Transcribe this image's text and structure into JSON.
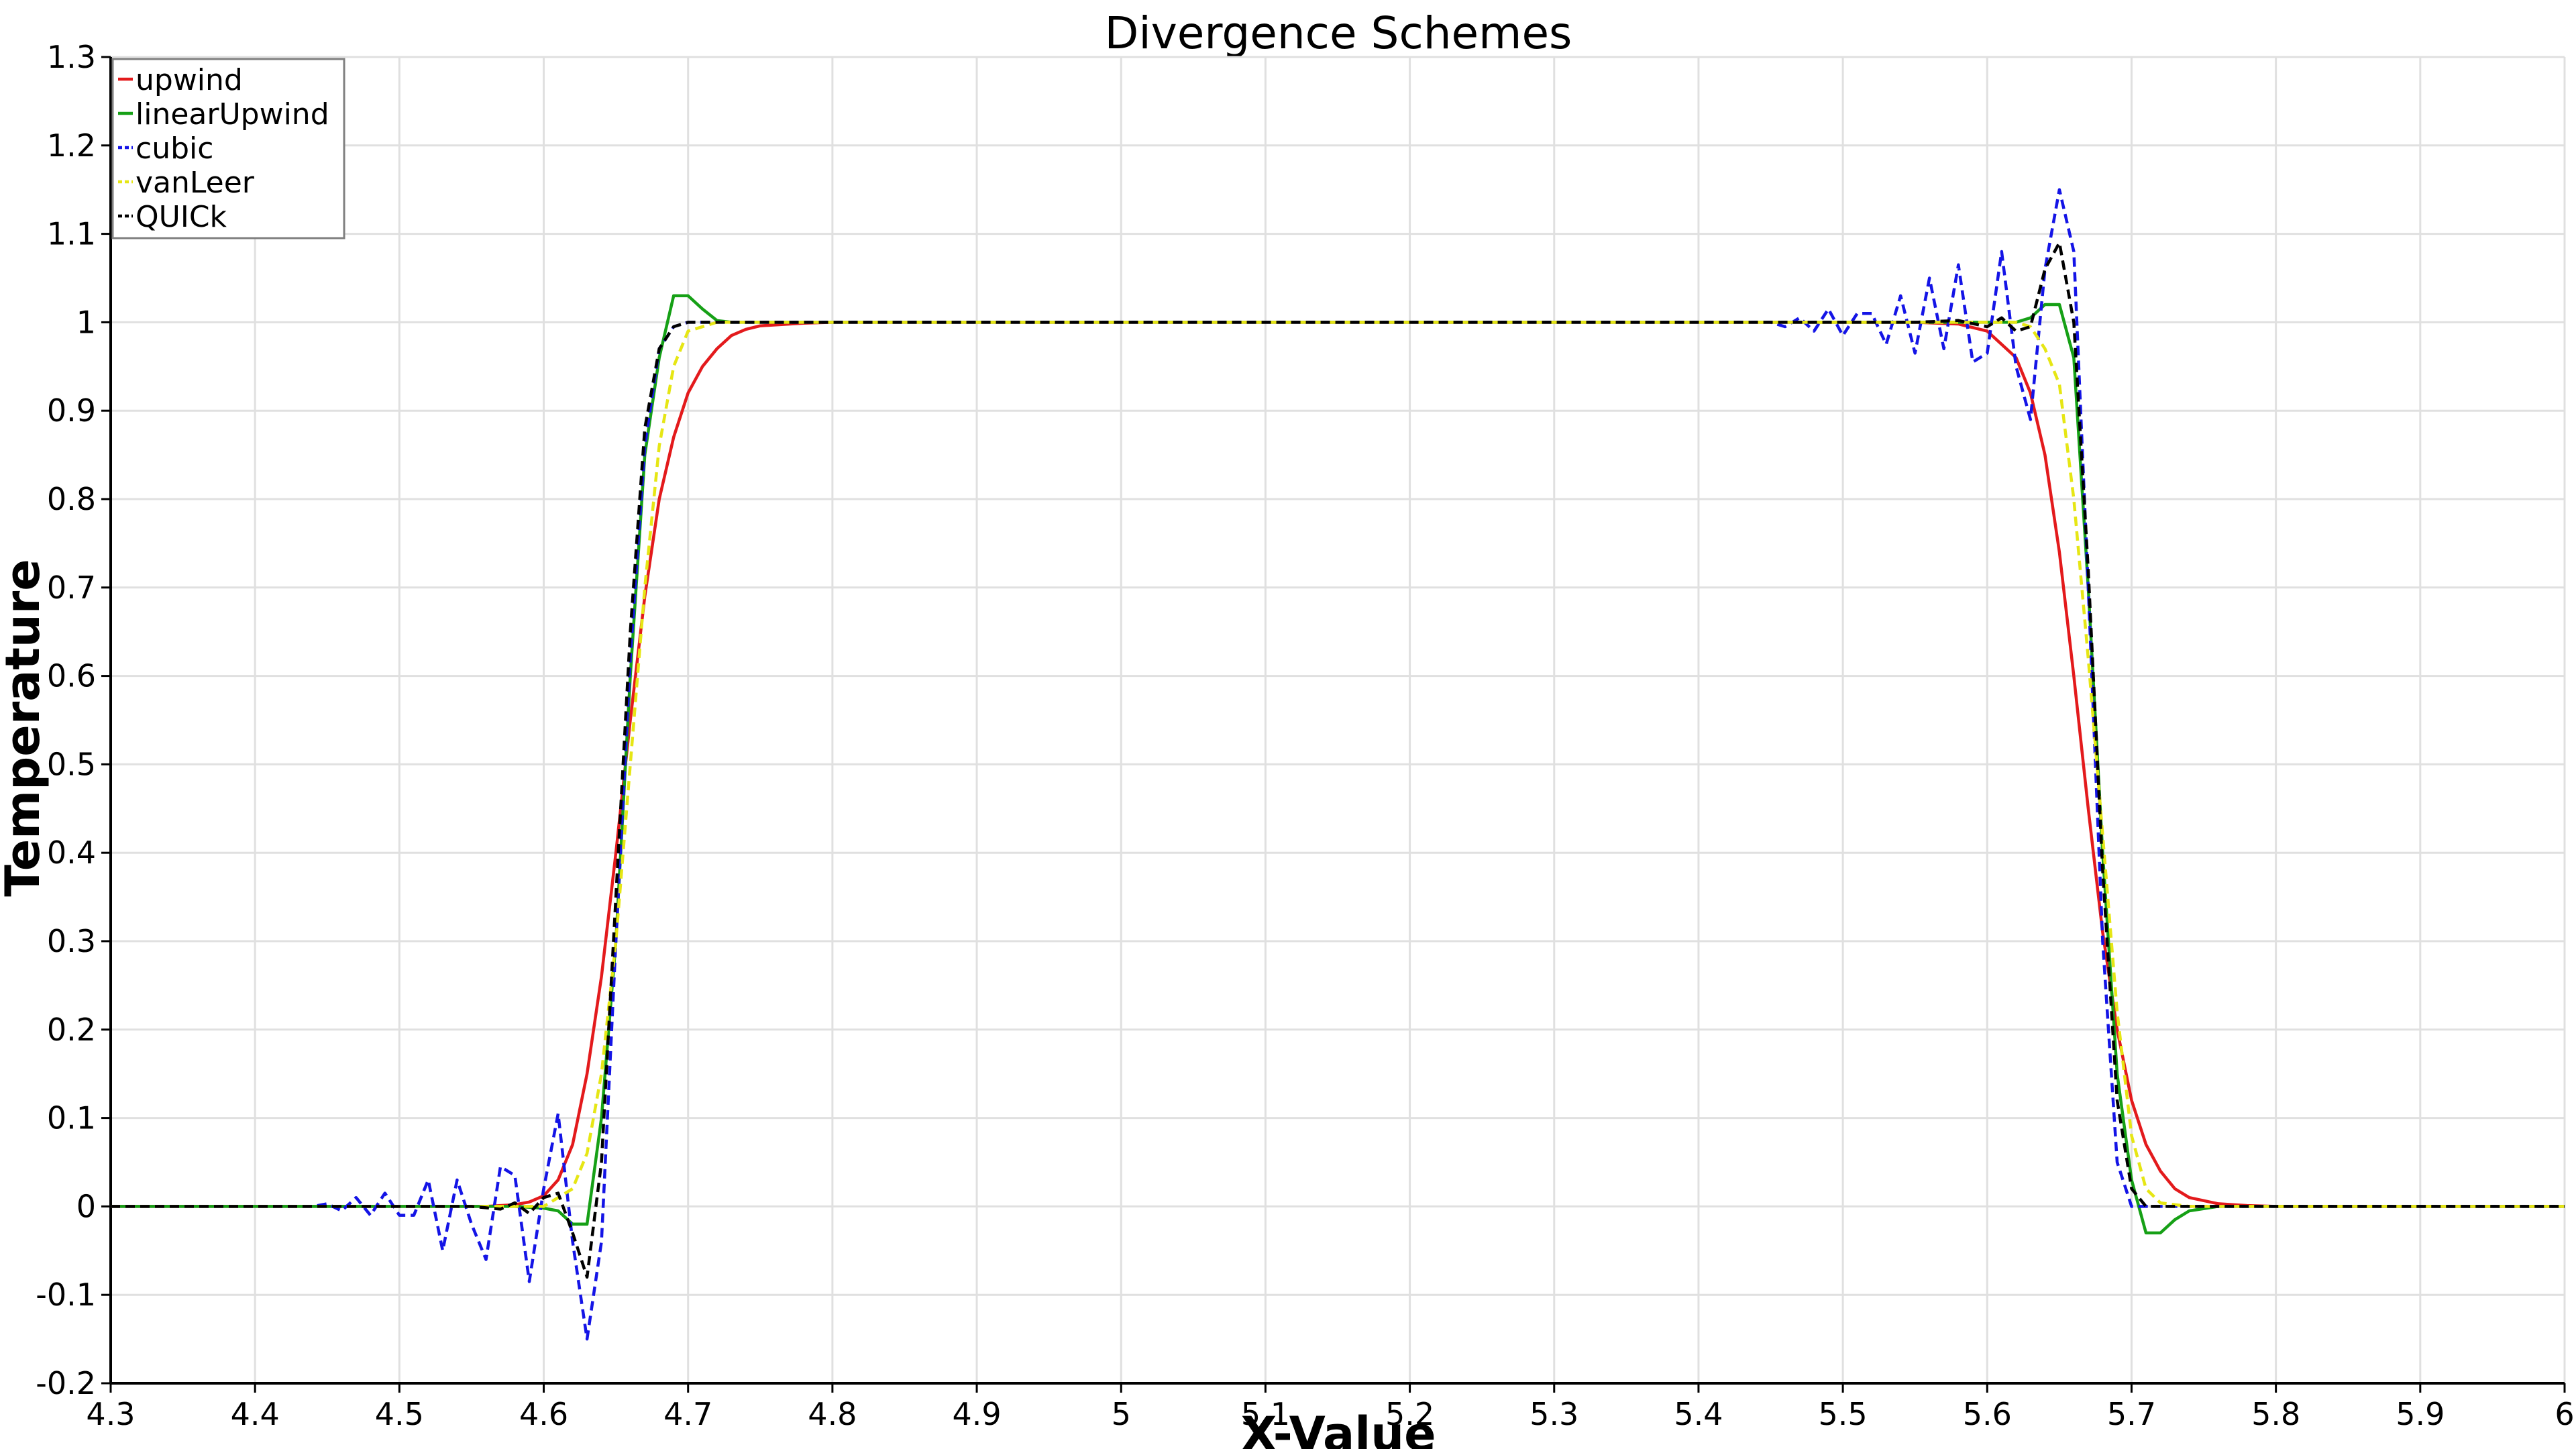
{
  "chart_data": {
    "type": "line",
    "title": "Divergence Schemes",
    "xlabel": "X-Value",
    "ylabel": "Temperature",
    "xlim": [
      4.3,
      6.0
    ],
    "ylim": [
      -0.2,
      1.3
    ],
    "xticks": [
      "4.3",
      "4.4",
      "4.5",
      "4.6",
      "4.7",
      "4.8",
      "4.9",
      "5",
      "5.1",
      "5.2",
      "5.3",
      "5.4",
      "5.5",
      "5.6",
      "5.7",
      "5.8",
      "5.9",
      "6"
    ],
    "yticks": [
      "1.3",
      "1.2",
      "1.1",
      "1",
      "0.9",
      "0.8",
      "0.7",
      "0.6",
      "0.5",
      "0.4",
      "0.3",
      "0.2",
      "0.1",
      "0",
      "-0.1",
      "-0.2"
    ],
    "legend_position": "top-left",
    "series": [
      {
        "name": "upwind",
        "color": "#e31a1c",
        "dash": "solid",
        "points": [
          [
            4.3,
            0
          ],
          [
            4.56,
            0
          ],
          [
            4.58,
            0.002
          ],
          [
            4.59,
            0.005
          ],
          [
            4.6,
            0.012
          ],
          [
            4.61,
            0.03
          ],
          [
            4.62,
            0.07
          ],
          [
            4.63,
            0.15
          ],
          [
            4.64,
            0.26
          ],
          [
            4.65,
            0.4
          ],
          [
            4.66,
            0.55
          ],
          [
            4.67,
            0.69
          ],
          [
            4.68,
            0.8
          ],
          [
            4.69,
            0.87
          ],
          [
            4.7,
            0.92
          ],
          [
            4.71,
            0.95
          ],
          [
            4.72,
            0.97
          ],
          [
            4.73,
            0.985
          ],
          [
            4.74,
            0.992
          ],
          [
            4.75,
            0.996
          ],
          [
            4.78,
            0.999
          ],
          [
            4.8,
            1.0
          ],
          [
            5.55,
            1.0
          ],
          [
            5.58,
            0.998
          ],
          [
            5.6,
            0.99
          ],
          [
            5.62,
            0.96
          ],
          [
            5.63,
            0.92
          ],
          [
            5.64,
            0.85
          ],
          [
            5.65,
            0.74
          ],
          [
            5.66,
            0.6
          ],
          [
            5.67,
            0.45
          ],
          [
            5.68,
            0.31
          ],
          [
            5.69,
            0.2
          ],
          [
            5.7,
            0.12
          ],
          [
            5.71,
            0.07
          ],
          [
            5.72,
            0.04
          ],
          [
            5.73,
            0.02
          ],
          [
            5.74,
            0.01
          ],
          [
            5.76,
            0.003
          ],
          [
            5.78,
            0.001
          ],
          [
            5.8,
            0
          ],
          [
            6.0,
            0
          ]
        ]
      },
      {
        "name": "linearUpwind",
        "color": "#16a016",
        "dash": "solid",
        "points": [
          [
            4.3,
            0
          ],
          [
            4.58,
            0
          ],
          [
            4.6,
            -0.002
          ],
          [
            4.61,
            -0.005
          ],
          [
            4.62,
            -0.02
          ],
          [
            4.63,
            -0.02
          ],
          [
            4.64,
            0.1
          ],
          [
            4.65,
            0.3
          ],
          [
            4.66,
            0.6
          ],
          [
            4.67,
            0.85
          ],
          [
            4.68,
            0.96
          ],
          [
            4.69,
            1.03
          ],
          [
            4.7,
            1.03
          ],
          [
            4.71,
            1.015
          ],
          [
            4.72,
            1.002
          ],
          [
            4.73,
            1.0
          ],
          [
            5.6,
            1.0
          ],
          [
            5.62,
            1.0
          ],
          [
            5.63,
            1.005
          ],
          [
            5.64,
            1.02
          ],
          [
            5.65,
            1.02
          ],
          [
            5.66,
            0.96
          ],
          [
            5.67,
            0.7
          ],
          [
            5.68,
            0.4
          ],
          [
            5.69,
            0.15
          ],
          [
            5.7,
            0.03
          ],
          [
            5.71,
            -0.03
          ],
          [
            5.72,
            -0.03
          ],
          [
            5.73,
            -0.015
          ],
          [
            5.74,
            -0.005
          ],
          [
            5.76,
            0
          ],
          [
            6.0,
            0
          ]
        ]
      },
      {
        "name": "cubic",
        "color": "#1414e6",
        "dash": "dashed",
        "points": [
          [
            4.3,
            0
          ],
          [
            4.44,
            0
          ],
          [
            4.45,
            0.003
          ],
          [
            4.46,
            -0.005
          ],
          [
            4.47,
            0.01
          ],
          [
            4.48,
            -0.01
          ],
          [
            4.49,
            0.015
          ],
          [
            4.5,
            -0.01
          ],
          [
            4.51,
            -0.01
          ],
          [
            4.52,
            0.03
          ],
          [
            4.53,
            -0.05
          ],
          [
            4.54,
            0.03
          ],
          [
            4.55,
            -0.02
          ],
          [
            4.56,
            -0.06
          ],
          [
            4.57,
            0.045
          ],
          [
            4.58,
            0.035
          ],
          [
            4.59,
            -0.085
          ],
          [
            4.6,
            0.02
          ],
          [
            4.61,
            0.105
          ],
          [
            4.62,
            -0.04
          ],
          [
            4.63,
            -0.15
          ],
          [
            4.64,
            -0.04
          ],
          [
            4.65,
            0.3
          ],
          [
            4.66,
            0.62
          ],
          [
            4.67,
            0.86
          ],
          [
            4.68,
            0.97
          ],
          [
            4.69,
            0.995
          ],
          [
            4.7,
            1.0
          ],
          [
            5.45,
            1.0
          ],
          [
            5.46,
            0.995
          ],
          [
            5.47,
            1.005
          ],
          [
            5.48,
            0.99
          ],
          [
            5.49,
            1.015
          ],
          [
            5.5,
            0.985
          ],
          [
            5.51,
            1.01
          ],
          [
            5.52,
            1.01
          ],
          [
            5.53,
            0.975
          ],
          [
            5.54,
            1.03
          ],
          [
            5.55,
            0.965
          ],
          [
            5.56,
            1.05
          ],
          [
            5.57,
            0.97
          ],
          [
            5.58,
            1.065
          ],
          [
            5.59,
            0.955
          ],
          [
            5.6,
            0.965
          ],
          [
            5.61,
            1.08
          ],
          [
            5.62,
            0.95
          ],
          [
            5.63,
            0.89
          ],
          [
            5.64,
            1.06
          ],
          [
            5.65,
            1.15
          ],
          [
            5.66,
            1.08
          ],
          [
            5.67,
            0.7
          ],
          [
            5.68,
            0.3
          ],
          [
            5.69,
            0.05
          ],
          [
            5.7,
            0.0
          ],
          [
            6.0,
            0
          ]
        ]
      },
      {
        "name": "vanLeer",
        "color": "#e6e614",
        "dash": "dashed",
        "points": [
          [
            4.3,
            0
          ],
          [
            4.6,
            0
          ],
          [
            4.62,
            0.02
          ],
          [
            4.63,
            0.06
          ],
          [
            4.64,
            0.15
          ],
          [
            4.65,
            0.3
          ],
          [
            4.66,
            0.5
          ],
          [
            4.67,
            0.7
          ],
          [
            4.68,
            0.86
          ],
          [
            4.69,
            0.95
          ],
          [
            4.7,
            0.99
          ],
          [
            4.72,
            1.0
          ],
          [
            5.62,
            1.0
          ],
          [
            5.63,
            0.995
          ],
          [
            5.64,
            0.97
          ],
          [
            5.65,
            0.93
          ],
          [
            5.66,
            0.8
          ],
          [
            5.67,
            0.62
          ],
          [
            5.68,
            0.42
          ],
          [
            5.69,
            0.22
          ],
          [
            5.7,
            0.08
          ],
          [
            5.71,
            0.02
          ],
          [
            5.72,
            0.004
          ],
          [
            5.74,
            0
          ],
          [
            6.0,
            0
          ]
        ]
      },
      {
        "name": "QUICk",
        "color": "#000000",
        "dash": "dashed",
        "points": [
          [
            4.3,
            0
          ],
          [
            4.55,
            0
          ],
          [
            4.57,
            -0.003
          ],
          [
            4.58,
            0.004
          ],
          [
            4.59,
            -0.008
          ],
          [
            4.6,
            0.01
          ],
          [
            4.61,
            0.015
          ],
          [
            4.62,
            -0.03
          ],
          [
            4.63,
            -0.08
          ],
          [
            4.64,
            0.05
          ],
          [
            4.65,
            0.35
          ],
          [
            4.66,
            0.65
          ],
          [
            4.67,
            0.88
          ],
          [
            4.68,
            0.97
          ],
          [
            4.69,
            0.995
          ],
          [
            4.7,
            1.0
          ],
          [
            5.55,
            1.0
          ],
          [
            5.58,
            1.002
          ],
          [
            5.6,
            0.995
          ],
          [
            5.61,
            1.005
          ],
          [
            5.62,
            0.99
          ],
          [
            5.63,
            0.995
          ],
          [
            5.64,
            1.06
          ],
          [
            5.65,
            1.09
          ],
          [
            5.66,
            1.0
          ],
          [
            5.67,
            0.72
          ],
          [
            5.68,
            0.38
          ],
          [
            5.69,
            0.12
          ],
          [
            5.7,
            0.02
          ],
          [
            5.71,
            0.0
          ],
          [
            6.0,
            0
          ]
        ]
      }
    ]
  }
}
